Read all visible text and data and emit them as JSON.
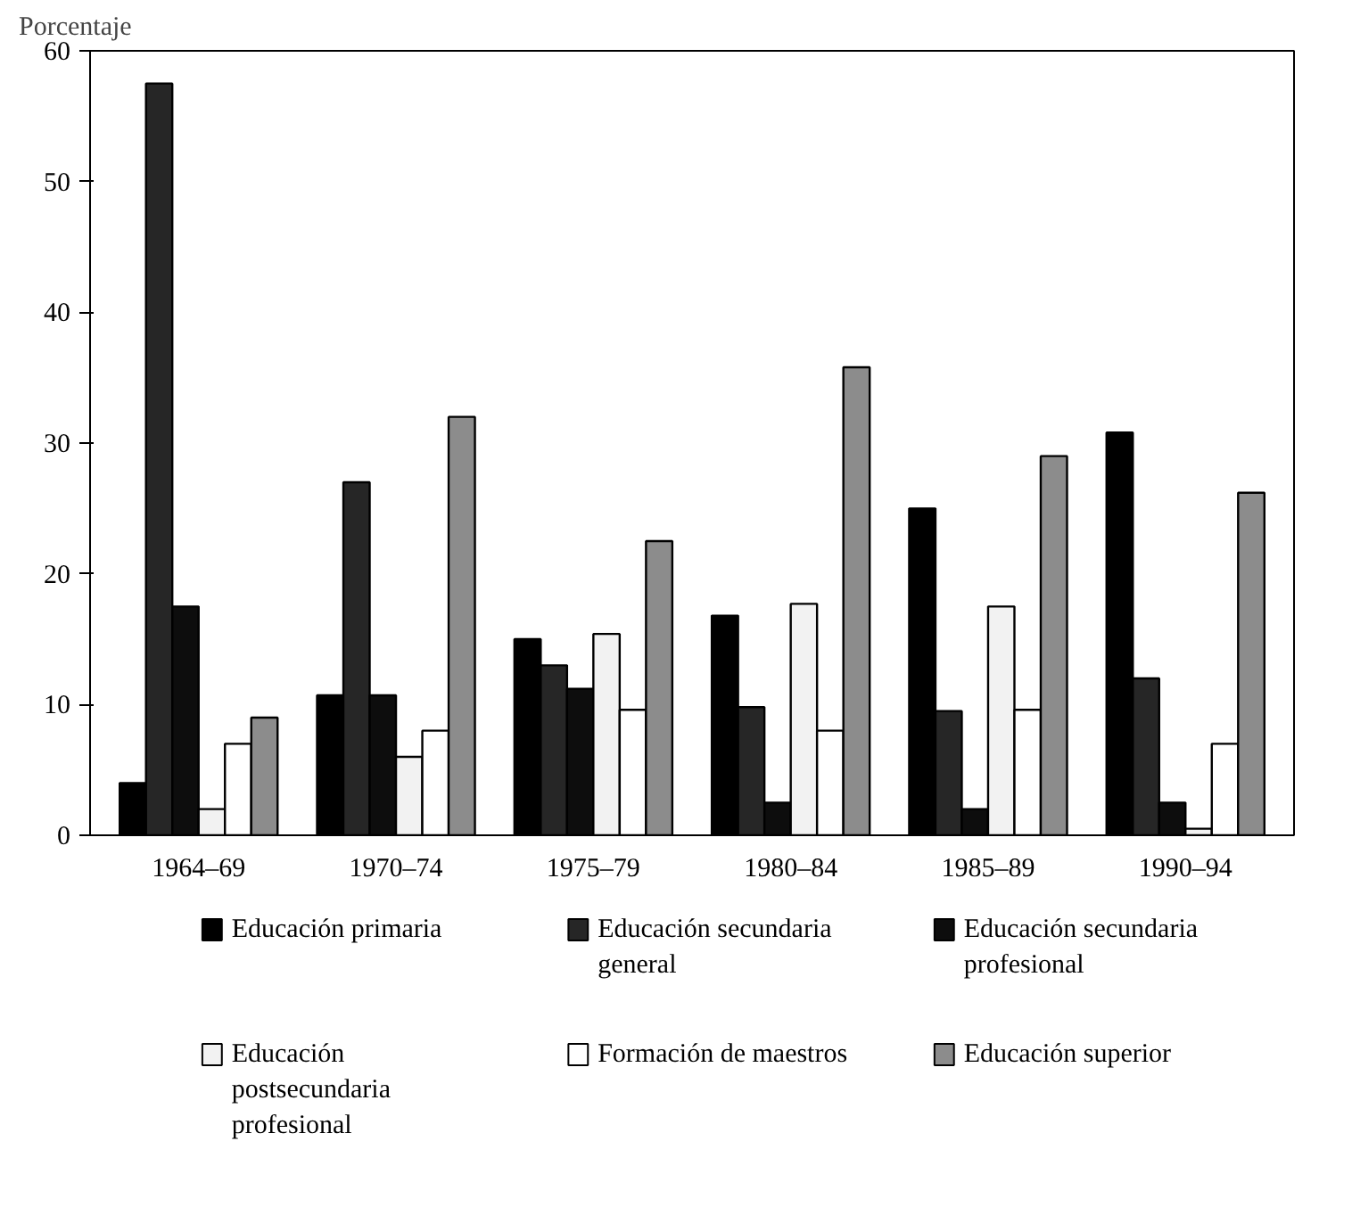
{
  "chart_data": {
    "type": "bar",
    "ylabel": "Porcentaje",
    "categories": [
      "1964–69",
      "1970–74",
      "1975–79",
      "1980–84",
      "1985–89",
      "1990–94"
    ],
    "series": [
      {
        "name": "Educación primaria",
        "color": "#000000",
        "values": [
          4,
          10.7,
          15,
          16.8,
          25,
          30.8
        ]
      },
      {
        "name": "Educación secundaria general",
        "color": "#262626",
        "values": [
          57.5,
          27,
          13,
          9.8,
          9.5,
          12
        ]
      },
      {
        "name": "Educación secundaria profesional",
        "color": "#0d0d0d",
        "values": [
          17.5,
          10.7,
          11.2,
          2.5,
          2,
          2.5
        ]
      },
      {
        "name": "Educación postsecundaria profesional",
        "color": "#f2f2f2",
        "values": [
          2,
          6,
          15.4,
          17.7,
          17.5,
          0.5
        ]
      },
      {
        "name": "Formación de maestros",
        "color": "#ffffff",
        "values": [
          7,
          8,
          9.6,
          8,
          9.6,
          7
        ]
      },
      {
        "name": "Educación superior",
        "color": "#8c8c8c",
        "values": [
          9,
          32,
          22.5,
          35.8,
          29,
          26.2
        ]
      }
    ],
    "ylim": [
      0,
      60
    ],
    "yticks": [
      0,
      10,
      20,
      30,
      40,
      50,
      60
    ],
    "grid": false,
    "legend": "bottom"
  }
}
